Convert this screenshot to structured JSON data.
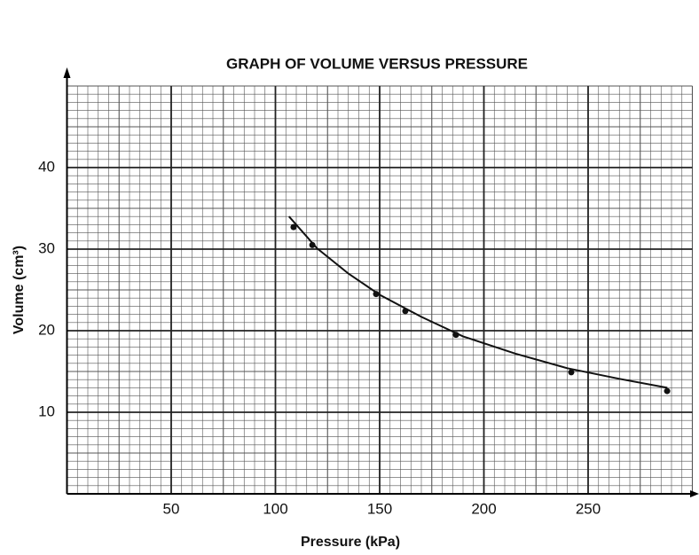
{
  "chart_data": {
    "type": "scatter",
    "title": "GRAPH OF VOLUME VERSUS PRESSURE",
    "x_label": "Pressure (kPa)",
    "y_label": "Volume (cm³)",
    "x": [
      108.7,
      117.7,
      148.3,
      162.3,
      186.6,
      241.9,
      287.9
    ],
    "values": [
      32.7,
      30.5,
      24.5,
      22.4,
      19.5,
      14.9,
      12.6
    ],
    "color": "#111111",
    "curve": {
      "x": [
        106.5,
        120,
        135,
        150,
        170,
        190,
        215,
        240,
        265,
        288
      ],
      "y": [
        34.0,
        30.1,
        27.0,
        24.4,
        21.7,
        19.3,
        17.2,
        15.4,
        14.1,
        13.0
      ]
    },
    "xlim": [
      0,
      300
    ],
    "ylim": [
      0,
      50
    ],
    "xticks": [
      50,
      100,
      150,
      200,
      250
    ],
    "yticks": [
      10,
      20,
      30,
      40
    ],
    "grid": true
  }
}
